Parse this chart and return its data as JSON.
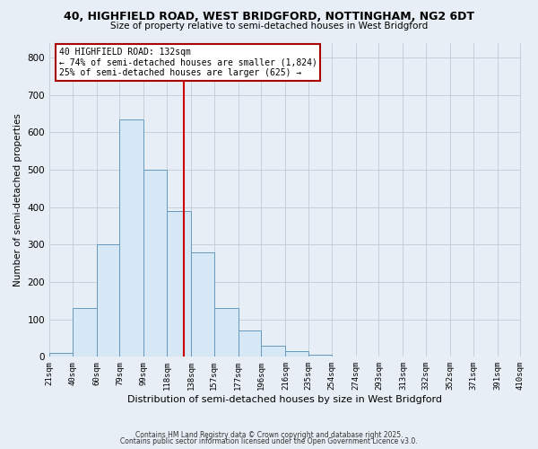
{
  "title_line1": "40, HIGHFIELD ROAD, WEST BRIDGFORD, NOTTINGHAM, NG2 6DT",
  "title_line2": "Size of property relative to semi-detached houses in West Bridgford",
  "xlabel": "Distribution of semi-detached houses by size in West Bridgford",
  "ylabel": "Number of semi-detached properties",
  "bin_edges": [
    21,
    40,
    60,
    79,
    99,
    118,
    138,
    157,
    177,
    196,
    216,
    235,
    254,
    274,
    293,
    313,
    332,
    352,
    371,
    391,
    410
  ],
  "bin_counts": [
    10,
    130,
    300,
    635,
    500,
    390,
    280,
    130,
    70,
    30,
    15,
    5,
    0,
    0,
    0,
    0,
    0,
    0,
    0,
    0
  ],
  "bar_facecolor": "#d6e8f5",
  "bar_edgecolor": "#6699bb",
  "vline_x": 132,
  "vline_color": "#cc0000",
  "ylim": [
    0,
    840
  ],
  "yticks": [
    0,
    100,
    200,
    300,
    400,
    500,
    600,
    700,
    800
  ],
  "annotation_title": "40 HIGHFIELD ROAD: 132sqm",
  "annotation_line2": "← 74% of semi-detached houses are smaller (1,824)",
  "annotation_line3": "25% of semi-detached houses are larger (625) →",
  "annotation_box_edgecolor": "#aa0000",
  "footnote1": "Contains HM Land Registry data © Crown copyright and database right 2025.",
  "footnote2": "Contains public sector information licensed under the Open Government Licence v3.0.",
  "background_color": "#e8eef5",
  "grid_color": "#c0ccd8",
  "tick_labels": [
    "21sqm",
    "40sqm",
    "60sqm",
    "79sqm",
    "99sqm",
    "118sqm",
    "138sqm",
    "157sqm",
    "177sqm",
    "196sqm",
    "216sqm",
    "235sqm",
    "254sqm",
    "274sqm",
    "293sqm",
    "313sqm",
    "332sqm",
    "352sqm",
    "371sqm",
    "391sqm",
    "410sqm"
  ]
}
